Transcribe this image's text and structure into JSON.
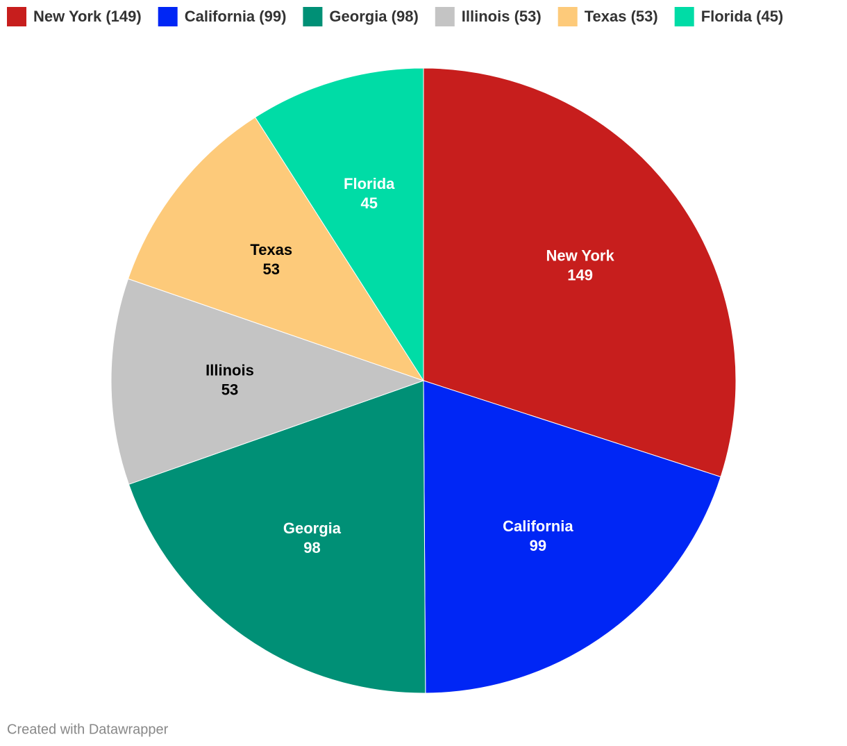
{
  "chart_data": {
    "type": "pie",
    "categories": [
      "New York",
      "California",
      "Georgia",
      "Illinois",
      "Texas",
      "Florida"
    ],
    "values": [
      149,
      99,
      98,
      53,
      53,
      45
    ],
    "colors": [
      "#c71e1d",
      "#0026f5",
      "#009076",
      "#c4c4c4",
      "#fdca7a",
      "#00dca6"
    ],
    "legend": [
      "New York (149)",
      "California (99)",
      "Georgia (98)",
      "Illinois (53)",
      "Texas (53)",
      "Florida (45)"
    ],
    "legend_position": "top-left",
    "footer": "Created with Datawrapper"
  }
}
